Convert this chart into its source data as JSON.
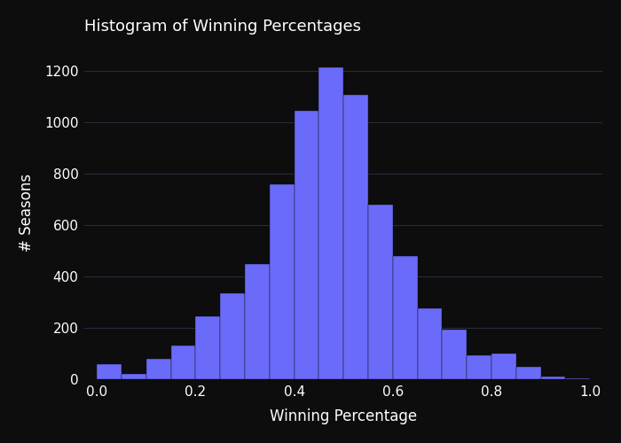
{
  "title": "Histogram of Winning Percentages",
  "xlabel": "Winning Percentage",
  "ylabel": "# Seasons",
  "background_color": "#0d0d0d",
  "bar_color": "#6b6bfa",
  "text_color": "#ffffff",
  "grid_color": "#3a3a5a",
  "xlim": [
    -0.025,
    1.025
  ],
  "ylim": [
    0,
    1300
  ],
  "yticks": [
    0,
    200,
    400,
    600,
    800,
    1000,
    1200
  ],
  "xticks": [
    0.0,
    0.2,
    0.4,
    0.6,
    0.8,
    1.0
  ],
  "bin_edges": [
    0.0,
    0.05,
    0.1,
    0.15,
    0.2,
    0.25,
    0.3,
    0.35,
    0.4,
    0.45,
    0.5,
    0.55,
    0.6,
    0.65,
    0.7,
    0.75,
    0.8,
    0.85,
    0.9,
    0.95,
    1.0
  ],
  "counts": [
    60,
    20,
    80,
    130,
    245,
    335,
    450,
    760,
    1045,
    1215,
    1110,
    680,
    480,
    275,
    195,
    95,
    100,
    50,
    10,
    5
  ]
}
